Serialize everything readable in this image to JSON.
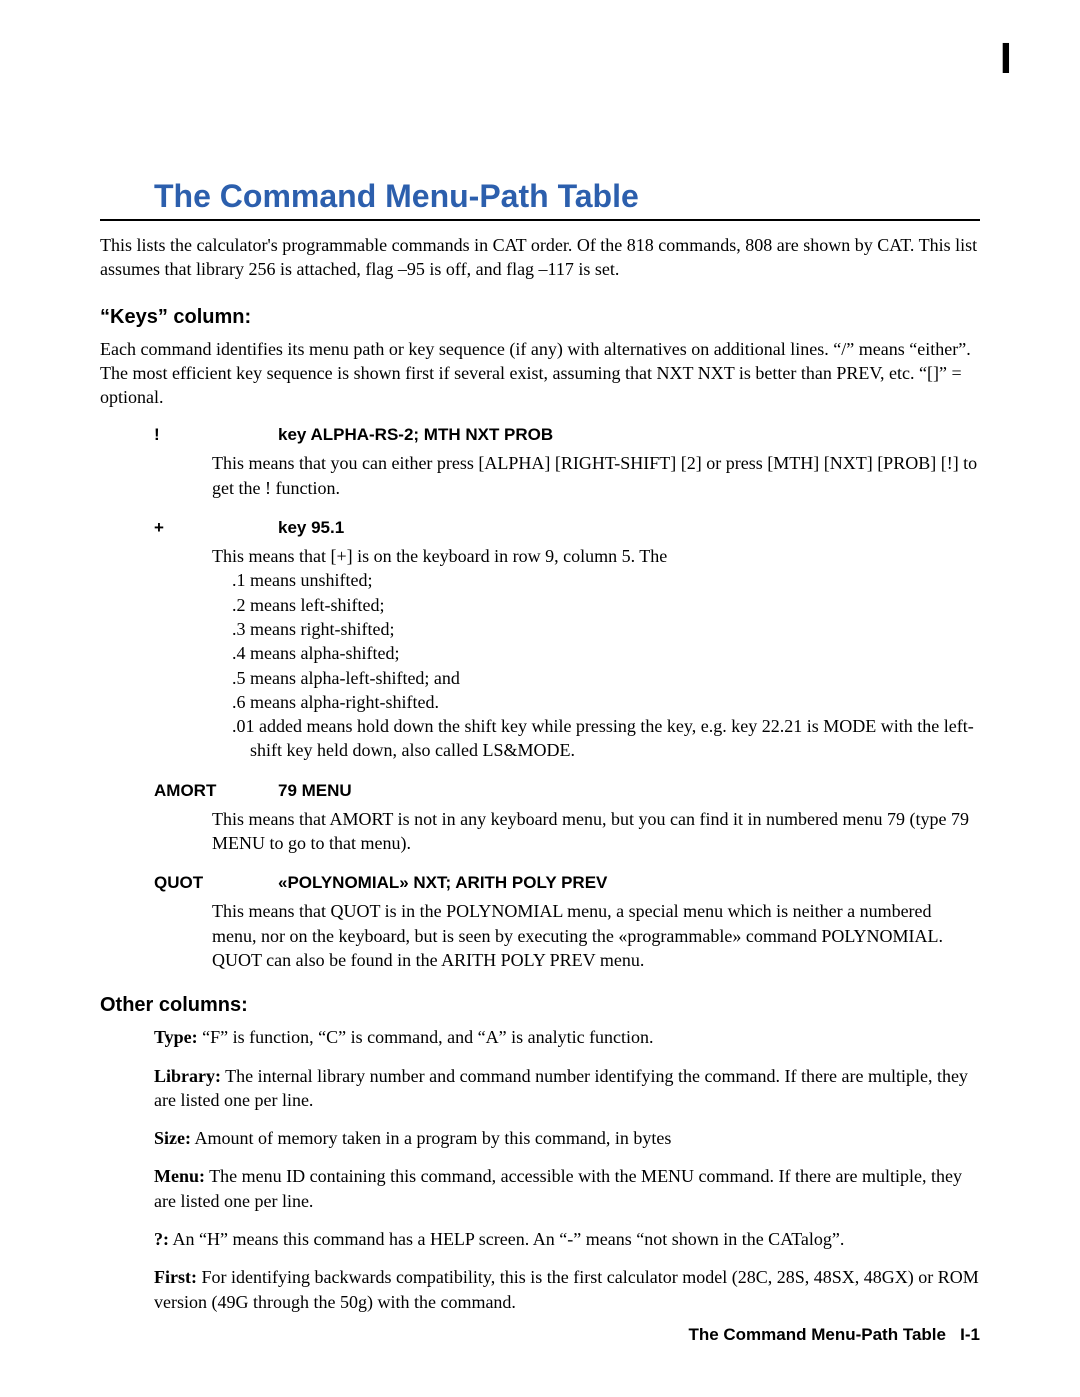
{
  "chapter_mark": "I",
  "title": "The Command Menu-Path Table",
  "intro": "This lists the calculator's programmable commands in CAT order. Of the 818 commands, 808 are shown by CAT. This list assumes that library 256 is attached, flag –95 is off, and flag –117 is set.",
  "keys_heading": "“Keys” column:",
  "keys_para": "Each command identifies its menu path or key sequence (if any) with alternatives on additional lines. “/” means “either”. The most efficient key sequence is shown first if several exist, assuming that NXT NXT is better than PREV, etc. “[]” = optional.",
  "entries": {
    "e1": {
      "sym": "!",
      "key": "key ALPHA-RS-2; MTH NXT PROB",
      "body": "This means that you can either press [ALPHA] [RIGHT-SHIFT] [2] or press [MTH] [NXT] [PROB] [!] to get the ! function."
    },
    "e2": {
      "sym": "+",
      "key": "key 95.1",
      "body_pre": "This means that [+] is on the keyboard in row 9, column 5. The",
      "shifts": {
        "s1": ".1 means unshifted;",
        "s2": ".2 means left-shifted;",
        "s3": ".3 means right-shifted;",
        "s4": ".4 means alpha-shifted;",
        "s5": ".5 means alpha-left-shifted; and",
        "s6": ".6 means alpha-right-shifted."
      },
      "body_post": ".01 added means hold down the shift key while pressing the key, e.g. key 22.21 is MODE with the left-shift key held down, also called LS&MODE."
    },
    "e3": {
      "sym": "AMORT",
      "key": "79 MENU",
      "body": "This means that AMORT is not in any keyboard menu, but you can find it in numbered menu 79 (type 79 MENU to go to that menu)."
    },
    "e4": {
      "sym": "QUOT",
      "key": "«POLYNOMIAL» NXT; ARITH POLY PREV",
      "body": "This means that QUOT is in the POLYNOMIAL menu, a special menu which is neither a numbered menu, nor on the keyboard, but is seen by executing the «programmable» command POLYNOMIAL. QUOT can also be found in the ARITH POLY PREV menu."
    }
  },
  "other_heading": "Other columns:",
  "cols": {
    "type": {
      "label": "Type:",
      "text": " “F” is function, “C” is command, and “A” is analytic function."
    },
    "library": {
      "label": "Library:",
      "text": " The internal library number and command number identifying the command. If there are multiple, they are listed one per line."
    },
    "size": {
      "label": "Size:",
      "text": " Amount of memory taken in a program by this command, in bytes"
    },
    "menu": {
      "label": "Menu:",
      "text": " The menu ID containing this command, accessible with the MENU command. If there are multiple, they are listed one per line."
    },
    "q": {
      "label": "?:",
      "text": " An “H” means this command has a HELP screen. An “-” means “not shown in the CATalog”."
    },
    "first": {
      "label": "First:",
      "text": " For identifying backwards compatibility, this is the first calculator model (28C, 28S, 48SX, 48GX) or ROM version (49G through the 50g) with the command."
    }
  },
  "footer": {
    "title": "The Command Menu-Path Table",
    "page": "I-1"
  }
}
